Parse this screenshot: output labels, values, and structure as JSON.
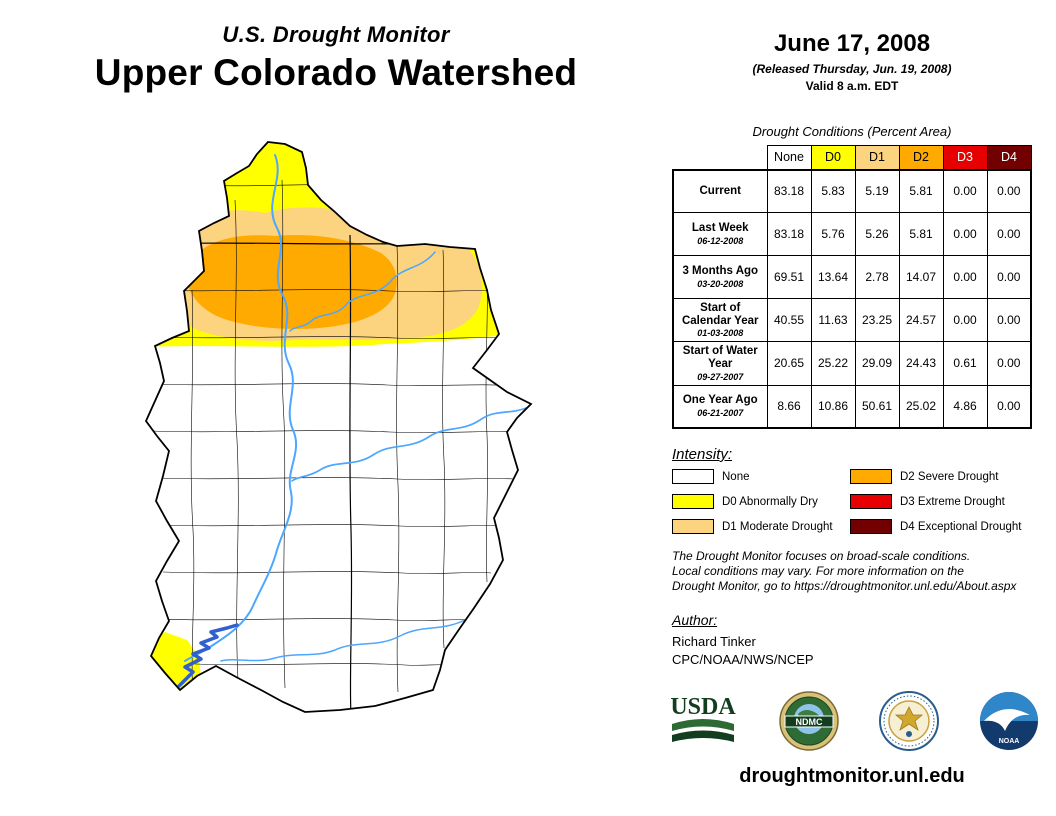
{
  "header": {
    "supertitle": "U.S. Drought Monitor",
    "title": "Upper Colorado Watershed"
  },
  "date_block": {
    "date": "June 17, 2008",
    "released": "(Released Thursday, Jun. 19, 2008)",
    "valid": "Valid 8 a.m. EDT"
  },
  "colors": {
    "none": "#FFFFFF",
    "d0": "#FFFF00",
    "d1": "#FCD37F",
    "d2": "#FFAA00",
    "d3": "#E60000",
    "d4": "#730000",
    "river": "#4DA6FF",
    "lake": "#3060D0",
    "outline": "#000000"
  },
  "table": {
    "title": "Drought Conditions (Percent Area)",
    "columns": [
      {
        "label": "None",
        "color_key": "none",
        "text_color": "#000000"
      },
      {
        "label": "D0",
        "color_key": "d0",
        "text_color": "#000000"
      },
      {
        "label": "D1",
        "color_key": "d1",
        "text_color": "#000000"
      },
      {
        "label": "D2",
        "color_key": "d2",
        "text_color": "#000000"
      },
      {
        "label": "D3",
        "color_key": "d3",
        "text_color": "#FFFFFF"
      },
      {
        "label": "D4",
        "color_key": "d4",
        "text_color": "#FFFFFF"
      }
    ],
    "rows": [
      {
        "label": "Current",
        "sublabel": "",
        "values": [
          "83.18",
          "5.83",
          "5.19",
          "5.81",
          "0.00",
          "0.00"
        ]
      },
      {
        "label": "Last Week",
        "sublabel": "06-12-2008",
        "values": [
          "83.18",
          "5.76",
          "5.26",
          "5.81",
          "0.00",
          "0.00"
        ]
      },
      {
        "label": "3 Months Ago",
        "sublabel": "03-20-2008",
        "values": [
          "69.51",
          "13.64",
          "2.78",
          "14.07",
          "0.00",
          "0.00"
        ]
      },
      {
        "label": "Start of Calendar Year",
        "sublabel": "01-03-2008",
        "values": [
          "40.55",
          "11.63",
          "23.25",
          "24.57",
          "0.00",
          "0.00"
        ]
      },
      {
        "label": "Start of Water Year",
        "sublabel": "09-27-2007",
        "values": [
          "20.65",
          "25.22",
          "29.09",
          "24.43",
          "0.61",
          "0.00"
        ]
      },
      {
        "label": "One Year Ago",
        "sublabel": "06-21-2007",
        "values": [
          "8.66",
          "10.86",
          "50.61",
          "25.02",
          "4.86",
          "0.00"
        ]
      }
    ]
  },
  "legend": {
    "title": "Intensity:",
    "items": [
      {
        "label": "None",
        "color_key": "none"
      },
      {
        "label": "D0 Abnormally Dry",
        "color_key": "d0"
      },
      {
        "label": "D1 Moderate Drought",
        "color_key": "d1"
      },
      {
        "label": "D2 Severe Drought",
        "color_key": "d2"
      },
      {
        "label": "D3 Extreme Drought",
        "color_key": "d3"
      },
      {
        "label": "D4 Exceptional Drought",
        "color_key": "d4"
      }
    ]
  },
  "disclaimer_lines": [
    "The Drought Monitor focuses on broad-scale conditions.",
    "Local conditions may vary. For more information on the",
    "Drought Monitor, go to https://droughtmonitor.unl.edu/About.aspx"
  ],
  "author": {
    "heading": "Author:",
    "name": "Richard Tinker",
    "org": "CPC/NOAA/NWS/NCEP"
  },
  "logos": {
    "usda": "USDA",
    "ndmc": "NDMC",
    "noaa": "NOAA"
  },
  "footer": {
    "url": "droughtmonitor.unl.edu"
  }
}
